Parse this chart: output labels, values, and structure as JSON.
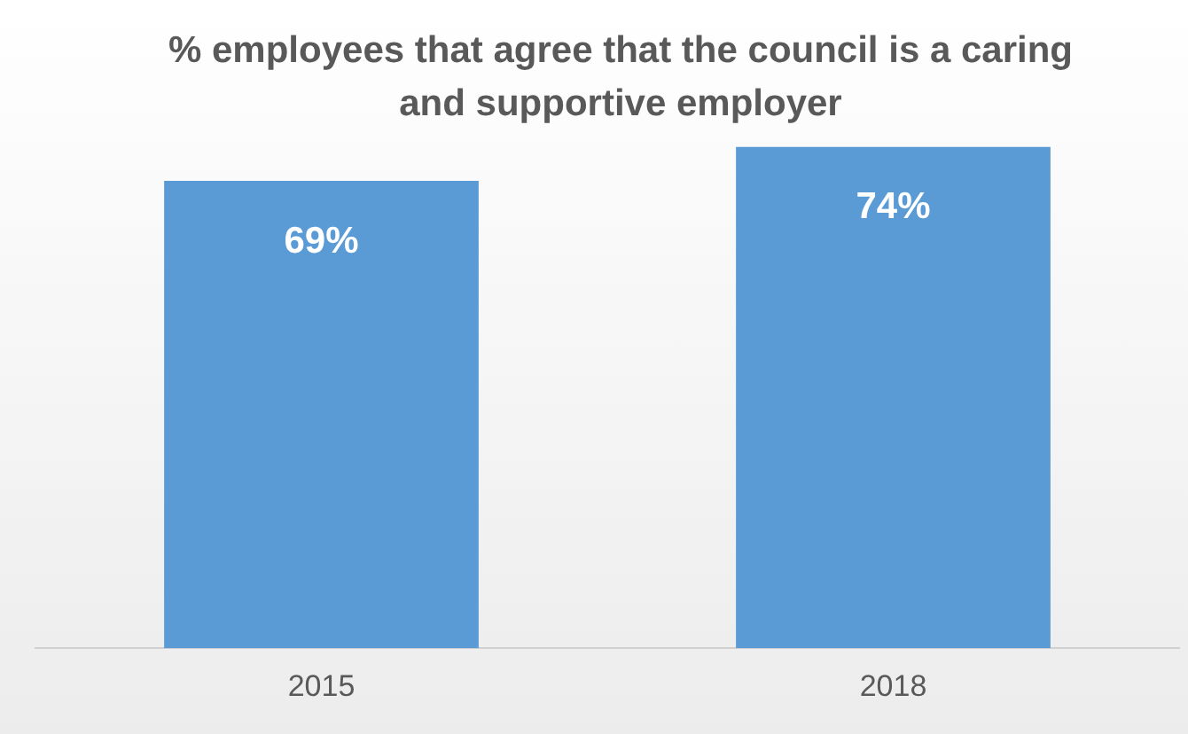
{
  "chart_data": {
    "type": "bar",
    "title": "% employees that agree that the council is a caring and supportive employer",
    "categories": [
      "2015",
      "2018"
    ],
    "values": [
      69,
      74
    ],
    "value_labels": [
      "69%",
      "74%"
    ],
    "color": "#5b9bd5",
    "grid": false,
    "legend": false,
    "tick_labels": "x"
  }
}
